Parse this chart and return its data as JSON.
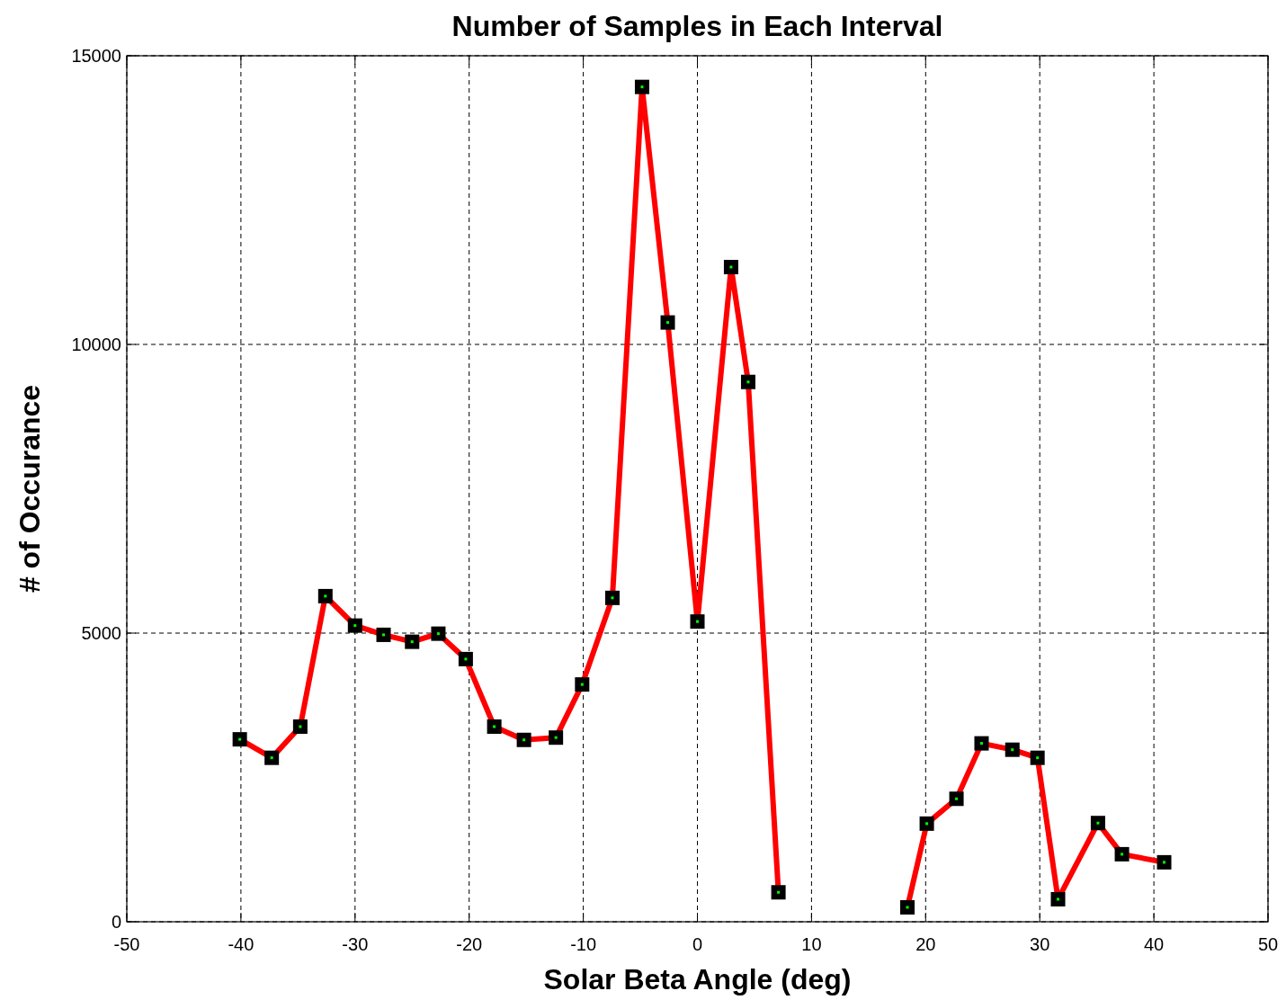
{
  "chart_data": {
    "type": "line",
    "title": "Number of Samples in Each Interval",
    "xlabel": "Solar Beta Angle (deg)",
    "ylabel": "# of Occurance",
    "x": [
      -40.1,
      -37.3,
      -34.8,
      -32.6,
      -30,
      -27.5,
      -25,
      -22.7,
      -20.3,
      -17.8,
      -15.2,
      -12.4,
      -10.1,
      -7.45,
      -4.85,
      -2.6,
      0,
      2.95,
      4.45,
      7.1,
      12,
      18.4,
      20.1,
      22.7,
      24.9,
      27.6,
      29.8,
      31.6,
      35.1,
      37.2,
      40.9
    ],
    "series": [
      {
        "color": "#ff0000",
        "values": [
          3160,
          2840,
          3380,
          5640,
          5130,
          4970,
          4850,
          4990,
          4550,
          3380,
          3150,
          3190,
          4110,
          5610,
          14460,
          10380,
          5200,
          11340,
          9350,
          510,
          null,
          250,
          1700,
          2130,
          3090,
          2980,
          2840,
          390,
          1710,
          1170,
          1030
        ]
      }
    ],
    "xlim": [
      -50,
      50
    ],
    "xticks": [
      -50,
      -40,
      -30,
      -20,
      -10,
      0,
      10,
      20,
      30,
      40,
      50
    ],
    "ylim": [
      0,
      15000
    ],
    "yticks": [
      0,
      5000,
      10000,
      15000
    ],
    "grid": true,
    "marker": "square",
    "line_style": "solid"
  }
}
